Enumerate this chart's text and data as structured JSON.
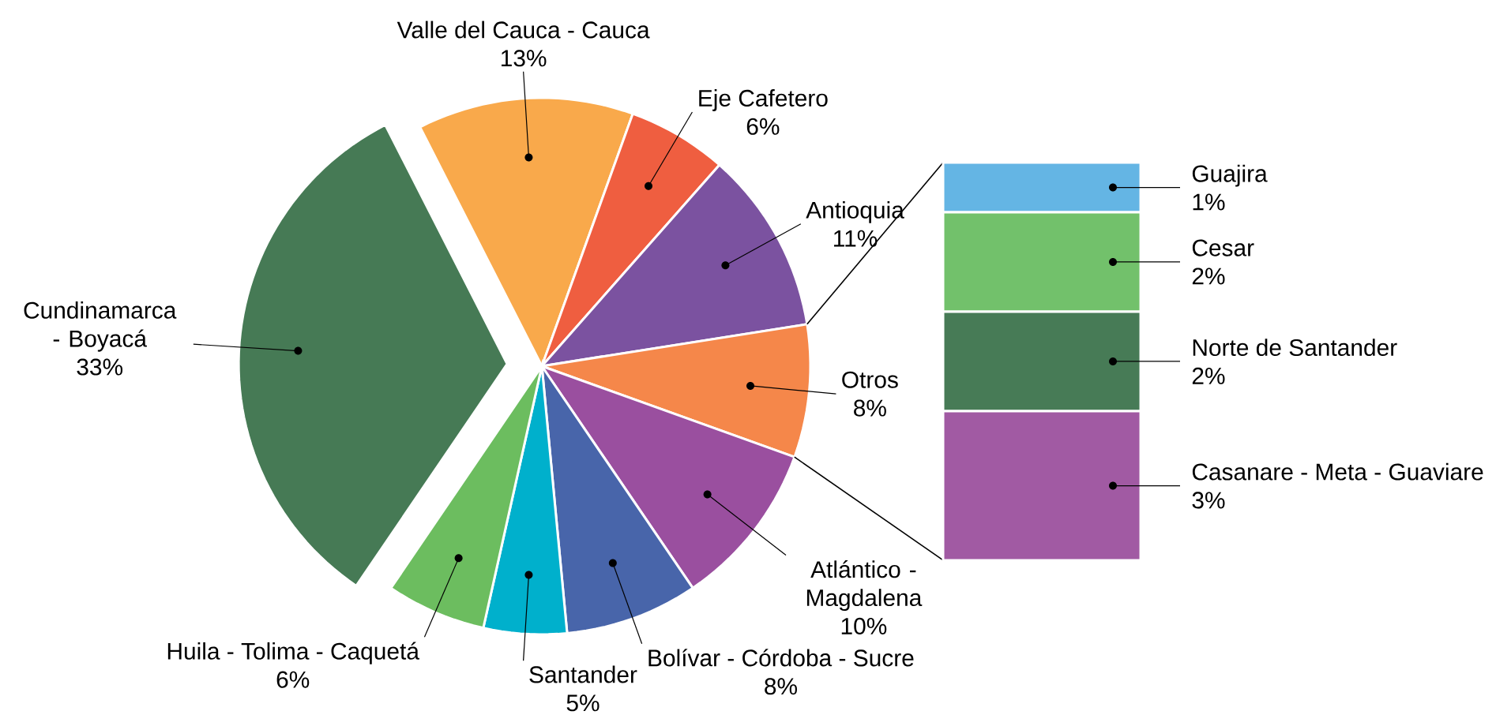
{
  "chart_data": [
    {
      "type": "pie",
      "categories": [
        "Valle del Cauca - Cauca",
        "Eje Cafetero",
        "Antioquia",
        "Otros",
        "Atlántico - Magdalena",
        "Bolívar - Córdoba - Sucre",
        "Santander",
        "Huila - Tolima - Caquetá",
        "Cundinamarca - Boyacá"
      ],
      "values": [
        13,
        6,
        11,
        8,
        10,
        8,
        5,
        6,
        33
      ],
      "value_labels": [
        "13%",
        "6%",
        "11%",
        "8%",
        "10%",
        "8%",
        "5%",
        "6%",
        "33%"
      ],
      "colors": [
        "#f9a94b",
        "#ef5e40",
        "#7b52a0",
        "#f5874a",
        "#9a4f9f",
        "#4865aa",
        "#00b0cc",
        "#6cbd5f",
        "#467a55"
      ]
    },
    {
      "type": "bar",
      "stacked": true,
      "categories": [
        null
      ],
      "series": [
        {
          "name": "Casanare - Meta - Guaviare",
          "color": "#a15aa3",
          "values": [
            3
          ],
          "value_labels": [
            "3%"
          ]
        },
        {
          "name": "Norte de Santander",
          "color": "#477b56",
          "values": [
            2
          ],
          "value_labels": [
            "2%"
          ]
        },
        {
          "name": "Cesar",
          "color": "#72c16b",
          "values": [
            2
          ],
          "value_labels": [
            "2%"
          ]
        },
        {
          "name": "Guajira",
          "color": "#64b5e4",
          "values": [
            1
          ],
          "value_labels": [
            "1%"
          ]
        }
      ]
    }
  ]
}
